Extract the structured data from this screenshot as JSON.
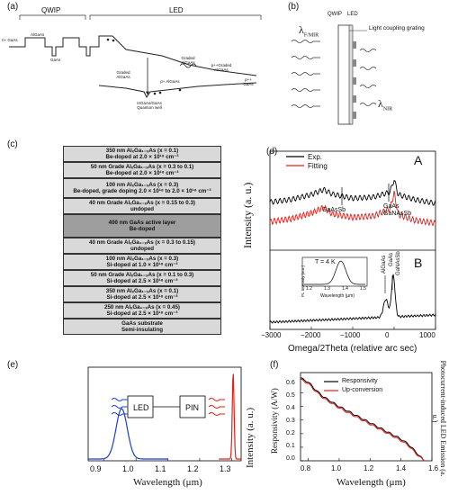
{
  "panels": {
    "a": {
      "label": "(a)",
      "qwip": "QWIP",
      "led": "LED",
      "n_gaas": "n+ GaAs",
      "algaas1": "AlGaAs",
      "gaas": "GaAs",
      "graded_algaas": "Graded AlGaAs",
      "graded_algaas2": "Graded AlGaAs",
      "p_algaas": "p+ AlGaAs",
      "pp_graded": "p++Graded AlGaAs",
      "pp_gaas": "p++ GaAs",
      "qw": "InGaAs/GaAs Quantum well"
    },
    "b": {
      "label": "(b)",
      "qwip": "QWIP",
      "led": "LED",
      "lambda_fmir": "λ",
      "lambda_fmir_sub": "F/MIR",
      "grating": "Light coupling grating",
      "lambda_nir": "λ",
      "lambda_nir_sub": "NIR"
    },
    "c": {
      "label": "(c)",
      "layers": [
        {
          "l1": "350 nm AlₓGa₁₋ₓAs (x = 0.1)",
          "l2": "Be-doped at 2.0 × 10¹⁸ cm⁻³",
          "shade": "#d9d9d9"
        },
        {
          "l1": "50 nm Grade AlₓGa₁₋ₓAs (x = 0.3 to 0.1)",
          "l2": "Be-doped at 2.0 × 10¹⁸ cm⁻³",
          "shade": "#d9d9d9"
        },
        {
          "l1": "100 nm AlₓGa₁₋ₓAs (x = 0.3)",
          "l2": "Be-doped, grade doping 2.0 × 10¹⁸ to 2.0 × 10¹⁸ cm⁻³",
          "shade": "#d9d9d9"
        },
        {
          "l1": "40 nm Grade AlₓGa₁₋ₓAs (x = 0.15 to 0.3)",
          "l2": "undoped",
          "shade": "#d9d9d9"
        },
        {
          "l1": "400 nm GaAs active layer",
          "l2": "Be-doped",
          "shade": "#9e9e9e"
        },
        {
          "l1": "40 nm Grade AlₓGa₁₋ₓAs (x = 0.3 to 0.15)",
          "l2": "undoped",
          "shade": "#d9d9d9"
        },
        {
          "l1": "100 nm AlₓGa₁₋ₓAs (x = 0.3)",
          "l2": "Si-doped at 1.0 × 10¹⁸ cm⁻³",
          "shade": "#d9d9d9"
        },
        {
          "l1": "50 nm Grade AlₓGa₁₋ₓAs (x = 0.1 to 0.3)",
          "l2": "Si-doped at 2.5 × 10¹⁸ cm⁻³",
          "shade": "#d9d9d9"
        },
        {
          "l1": "350 nm AlₓGa₁₋ₓAs (x = 0.1)",
          "l2": "Si-doped at 2.5 × 10¹⁸ cm⁻³",
          "shade": "#d9d9d9"
        },
        {
          "l1": "250 nm AlₓGa₁₋ₓAs (x = 0.45)",
          "l2": "Si-doped at 2.5 × 10¹⁸ cm⁻³",
          "shade": "#d9d9d9"
        },
        {
          "l1": "GaAs substrate",
          "l2": "Semi-insulating",
          "shade": "#d9d9d9"
        }
      ]
    },
    "d": {
      "label": "(d)",
      "legend_exp": "Exp.",
      "legend_fit": "Fitting",
      "tag_a": "A",
      "tag_b": "B",
      "gaassb": "GaAsSb",
      "gaas_ganassb": "GaAs",
      "ganassb": "GaNAsSb",
      "algaas": "AlGaAs",
      "gaas_b": "GaAs",
      "ganassb_b": "GaNAsSb",
      "inset_t": "T = 4 K",
      "inset_ylabel": "PL Intensity (a.u.)",
      "inset_xlabel": "Wavelength (μm)",
      "inset_ticks": [
        "1.2",
        "1.3",
        "1.4",
        "1.5"
      ],
      "ylabel": "Intensity (a. u.)",
      "xlabel": "Omega/2Theta (relative arc sec)",
      "xticks": [
        "−3000",
        "−2000",
        "−1000",
        "0",
        "1000"
      ]
    },
    "e": {
      "label": "(e)",
      "led": "LED",
      "pin": "PIN",
      "ylabel": "Intensity (a. u.)",
      "xlabel": "Wavelength (μm)",
      "xticks": [
        "0.9",
        "1.0",
        "1.1",
        "1.2",
        "1.3"
      ]
    },
    "f": {
      "label": "(f)",
      "legend_resp": "Responsivity",
      "legend_up": "Up-conversion",
      "ylabel": "Responsivity (A/W)",
      "ylabel_right": "Photocurrent-induced LED Emission (a. u.)",
      "xlabel": "Wavelength (μm)",
      "xticks": [
        "0.8",
        "1.0",
        "1.2",
        "1.4",
        "1.6"
      ],
      "yticks": [
        "0.0",
        "0.1",
        "0.2",
        "0.3",
        "0.4",
        "0.5",
        "0.6"
      ]
    }
  },
  "colors": {
    "exp": "#000000",
    "fit": "#e0201a",
    "blue": "#1a3fcf",
    "red": "#e0201a"
  },
  "chart_data": [
    {
      "type": "line",
      "panel": "d",
      "xlabel": "Omega/2Theta (relative arc sec)",
      "ylabel": "Intensity (a. u.)",
      "xlim": [
        -3000,
        1000
      ],
      "series": [
        {
          "name": "Exp.",
          "x": [
            -3000,
            -2500,
            -2000,
            -1700,
            -1500,
            -1000,
            -500,
            -100,
            0,
            100,
            500,
            1000
          ],
          "values": [
            0.62,
            0.66,
            0.74,
            0.82,
            0.75,
            0.68,
            0.7,
            0.78,
            0.98,
            0.74,
            0.66,
            0.6
          ]
        },
        {
          "name": "Fitting",
          "x": [
            -3000,
            -2500,
            -2000,
            -1700,
            -1500,
            -1000,
            -500,
            -100,
            0,
            100,
            500,
            1000
          ],
          "values": [
            0.52,
            0.56,
            0.64,
            0.72,
            0.63,
            0.58,
            0.6,
            0.7,
            0.92,
            0.62,
            0.54,
            0.5
          ]
        }
      ]
    },
    {
      "type": "line",
      "panel": "f",
      "xlabel": "Wavelength (μm)",
      "ylabel": "Responsivity (A/W)",
      "xlim": [
        0.75,
        1.6
      ],
      "ylim": [
        0,
        0.65
      ],
      "series": [
        {
          "name": "Responsivity",
          "x": [
            0.75,
            0.8,
            0.85,
            0.9,
            1.0,
            1.1,
            1.2,
            1.3,
            1.4,
            1.45,
            1.5,
            1.55
          ],
          "values": [
            0.61,
            0.58,
            0.52,
            0.47,
            0.4,
            0.34,
            0.28,
            0.22,
            0.16,
            0.12,
            0.06,
            0.0
          ]
        },
        {
          "name": "Up-conversion",
          "x": [
            0.75,
            0.8,
            0.85,
            0.9,
            1.0,
            1.1,
            1.2,
            1.3,
            1.4,
            1.45,
            1.5,
            1.55
          ],
          "values": [
            0.6,
            0.57,
            0.51,
            0.46,
            0.39,
            0.33,
            0.27,
            0.21,
            0.15,
            0.11,
            0.05,
            0.0
          ]
        }
      ]
    }
  ]
}
